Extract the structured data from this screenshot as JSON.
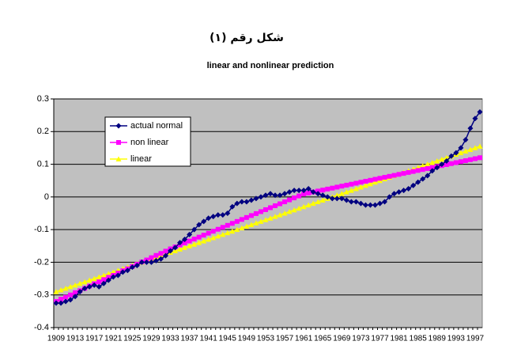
{
  "chart_data": {
    "type": "line",
    "title": "شكل رقم (١)",
    "subtitle": "linear and nonlinear prediction",
    "categories": [
      "1909",
      null,
      null,
      null,
      "1913",
      null,
      null,
      null,
      "1917",
      null,
      null,
      null,
      "1921",
      null,
      null,
      null,
      "1925",
      null,
      null,
      null,
      "1929",
      null,
      null,
      null,
      "1933",
      null,
      null,
      null,
      "1937",
      null,
      null,
      null,
      "1941",
      null,
      null,
      null,
      "1945",
      null,
      null,
      null,
      "1949",
      null,
      null,
      null,
      "1953",
      null,
      null,
      null,
      "1957",
      null,
      null,
      null,
      "1961",
      null,
      null,
      null,
      "1965",
      null,
      null,
      null,
      "1969",
      null,
      null,
      null,
      "1973",
      null,
      null,
      null,
      "1977",
      null,
      null,
      null,
      "1981",
      null,
      null,
      null,
      "1985",
      null,
      null,
      null,
      "1989",
      null,
      null,
      null,
      "1993",
      null,
      null,
      null,
      "1997",
      null
    ],
    "series": [
      {
        "name": "actual normal",
        "color": "#000080",
        "marker": "diamond",
        "values": [
          -0.325,
          -0.325,
          -0.32,
          -0.315,
          -0.305,
          -0.29,
          -0.28,
          -0.275,
          -0.27,
          -0.275,
          -0.265,
          -0.255,
          -0.245,
          -0.24,
          -0.23,
          -0.225,
          -0.215,
          -0.21,
          -0.2,
          -0.2,
          -0.2,
          -0.195,
          -0.19,
          -0.18,
          -0.165,
          -0.155,
          -0.14,
          -0.13,
          -0.115,
          -0.1,
          -0.085,
          -0.075,
          -0.065,
          -0.06,
          -0.055,
          -0.055,
          -0.05,
          -0.03,
          -0.02,
          -0.015,
          -0.015,
          -0.01,
          -0.005,
          0,
          0.005,
          0.01,
          0.005,
          0.005,
          0.01,
          0.015,
          0.02,
          0.02,
          0.02,
          0.025,
          0.015,
          0.01,
          0.005,
          0,
          -0.005,
          -0.005,
          -0.005,
          -0.01,
          -0.015,
          -0.015,
          -0.02,
          -0.025,
          -0.025,
          -0.025,
          -0.02,
          -0.015,
          0,
          0.01,
          0.015,
          0.02,
          0.025,
          0.035,
          0.045,
          0.055,
          0.065,
          0.08,
          0.09,
          0.1,
          0.11,
          0.125,
          0.135,
          0.15,
          0.175,
          0.21,
          0.24,
          0.26
        ]
      },
      {
        "name": "non linear",
        "color": "#ff00ff",
        "marker": "square",
        "values": [
          -0.32,
          -0.313,
          -0.307,
          -0.3,
          -0.293,
          -0.287,
          -0.28,
          -0.273,
          -0.266,
          -0.26,
          -0.253,
          -0.246,
          -0.24,
          -0.233,
          -0.226,
          -0.22,
          -0.213,
          -0.206,
          -0.199,
          -0.193,
          -0.186,
          -0.179,
          -0.173,
          -0.166,
          -0.159,
          -0.153,
          -0.147,
          -0.141,
          -0.135,
          -0.129,
          -0.123,
          -0.117,
          -0.111,
          -0.105,
          -0.099,
          -0.093,
          -0.087,
          -0.081,
          -0.075,
          -0.069,
          -0.063,
          -0.057,
          -0.051,
          -0.045,
          -0.039,
          -0.033,
          -0.027,
          -0.021,
          -0.015,
          -0.009,
          -0.003,
          0.003,
          0.009,
          0.012,
          0.015,
          0.018,
          0.021,
          0.024,
          0.027,
          0.03,
          0.033,
          0.036,
          0.039,
          0.042,
          0.045,
          0.048,
          0.051,
          0.054,
          0.057,
          0.06,
          0.063,
          0.066,
          0.069,
          0.072,
          0.075,
          0.078,
          0.081,
          0.084,
          0.087,
          0.09,
          0.093,
          0.096,
          0.099,
          0.102,
          0.105,
          0.108,
          0.111,
          0.114,
          0.117,
          0.12
        ]
      },
      {
        "name": "linear",
        "color": "#ffff00",
        "marker": "triangle",
        "values": [
          -0.29,
          -0.285,
          -0.28,
          -0.275,
          -0.27,
          -0.265,
          -0.26,
          -0.255,
          -0.25,
          -0.245,
          -0.24,
          -0.235,
          -0.23,
          -0.225,
          -0.22,
          -0.215,
          -0.21,
          -0.205,
          -0.2,
          -0.195,
          -0.19,
          -0.185,
          -0.18,
          -0.175,
          -0.17,
          -0.165,
          -0.16,
          -0.155,
          -0.15,
          -0.145,
          -0.14,
          -0.135,
          -0.13,
          -0.125,
          -0.12,
          -0.115,
          -0.11,
          -0.105,
          -0.1,
          -0.095,
          -0.09,
          -0.085,
          -0.08,
          -0.075,
          -0.07,
          -0.065,
          -0.06,
          -0.055,
          -0.05,
          -0.045,
          -0.04,
          -0.035,
          -0.03,
          -0.025,
          -0.02,
          -0.015,
          -0.01,
          -0.005,
          0,
          0.005,
          0.01,
          0.015,
          0.02,
          0.025,
          0.03,
          0.035,
          0.04,
          0.045,
          0.05,
          0.055,
          0.06,
          0.065,
          0.07,
          0.075,
          0.08,
          0.085,
          0.09,
          0.095,
          0.1,
          0.105,
          0.11,
          0.115,
          0.12,
          0.125,
          0.13,
          0.135,
          0.14,
          0.145,
          0.15,
          0.155
        ]
      }
    ],
    "ylim": [
      -0.4,
      0.3
    ],
    "yticks": [
      -0.4,
      -0.3,
      -0.2,
      -0.1,
      0,
      0.1,
      0.2,
      0.3
    ],
    "grid": true,
    "plot_background": "#c0c0c0",
    "legend": "upper left"
  }
}
